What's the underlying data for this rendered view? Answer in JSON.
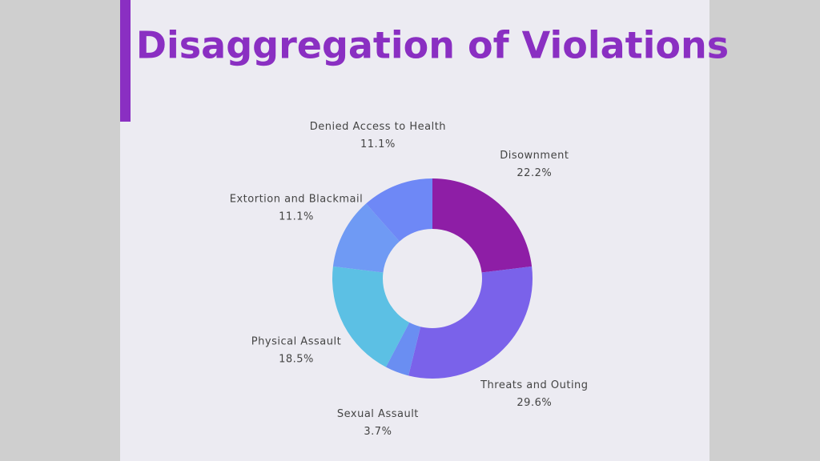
{
  "chart_data": {
    "type": "donut",
    "title": "Disaggregation of Violations",
    "categories": [
      "Disownment",
      "Threats and Outing",
      "Sexual Assault",
      "Physical Assault",
      "Extortion and Blackmail",
      "Denied Access to Health"
    ],
    "values": [
      22.2,
      29.6,
      3.7,
      18.5,
      11.1,
      11.1
    ],
    "value_labels": [
      "22.2%",
      "29.6%",
      "3.7%",
      "18.5%",
      "11.1%",
      "11.1%"
    ],
    "colors": [
      "#8e1ea6",
      "#7a62ea",
      "#6a8ef2",
      "#5cc0e4",
      "#6f9af4",
      "#6e88f6"
    ]
  }
}
